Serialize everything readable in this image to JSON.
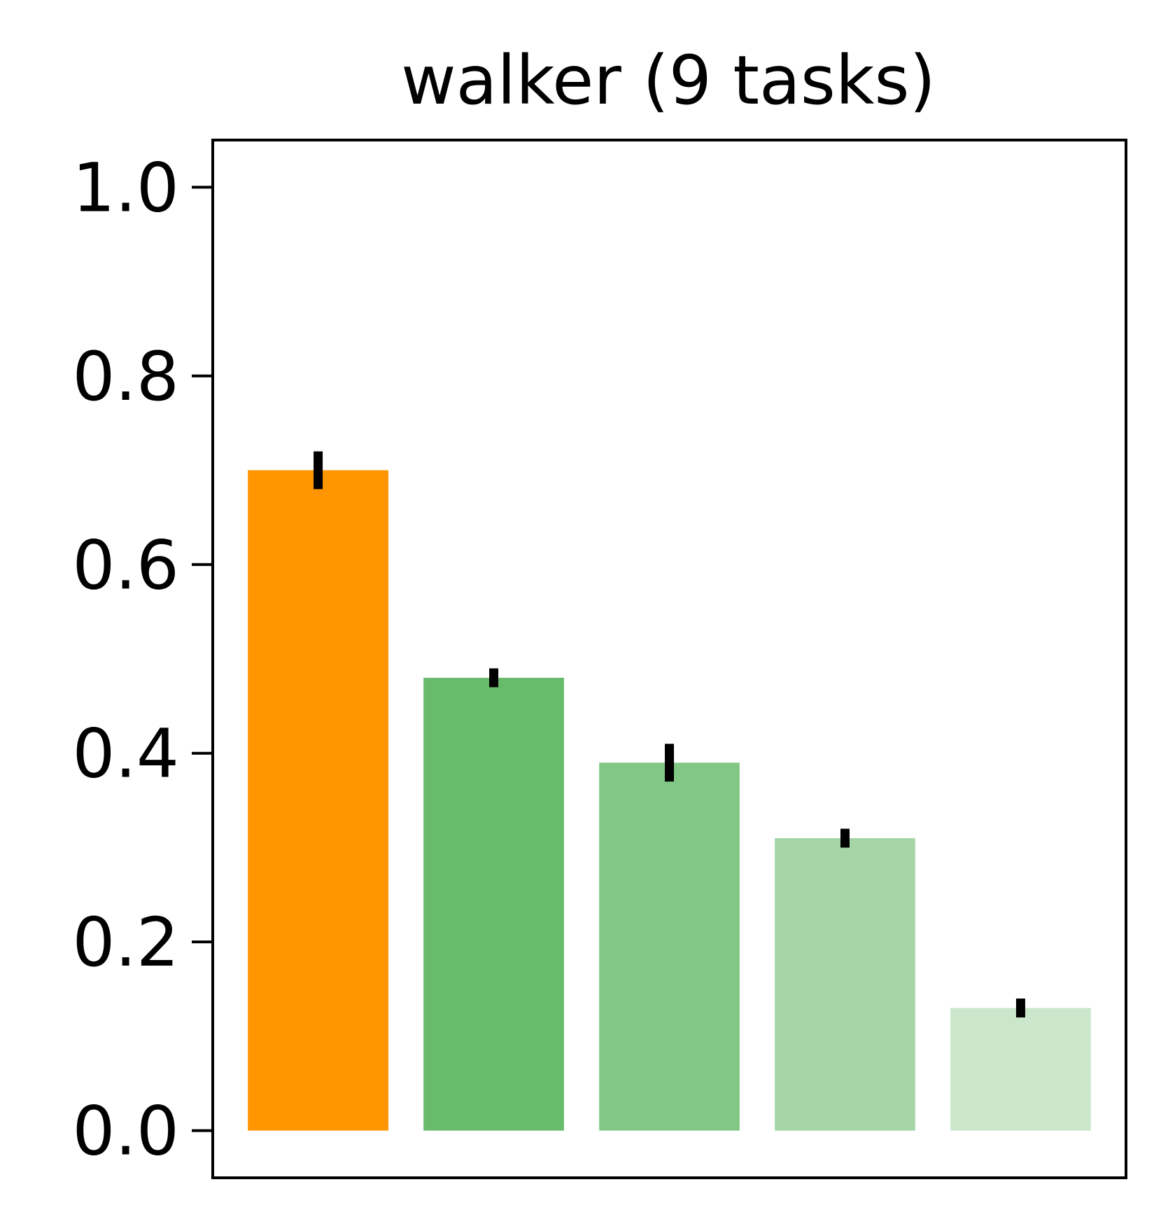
{
  "chart_data": {
    "type": "bar",
    "title": "walker (9 tasks)",
    "xlabel": "",
    "ylabel": "",
    "ylim": [
      -0.05,
      1.05
    ],
    "yticks": [
      0.0,
      0.2,
      0.4,
      0.6,
      0.8,
      1.0
    ],
    "ytick_labels": [
      "0.0",
      "0.2",
      "0.4",
      "0.6",
      "0.8",
      "1.0"
    ],
    "xticks_visible": false,
    "grid": false,
    "legend": "none",
    "bars": [
      {
        "value": 0.7,
        "error": 0.02,
        "color": "#ff9500"
      },
      {
        "value": 0.48,
        "error": 0.01,
        "color": "#69bb6c"
      },
      {
        "value": 0.39,
        "error": 0.02,
        "color": "#82c785"
      },
      {
        "value": 0.31,
        "error": 0.01,
        "color": "#a6d6a7"
      },
      {
        "value": 0.13,
        "error": 0.01,
        "color": "#cae7cb"
      }
    ],
    "errorbar_color": "#000000"
  }
}
